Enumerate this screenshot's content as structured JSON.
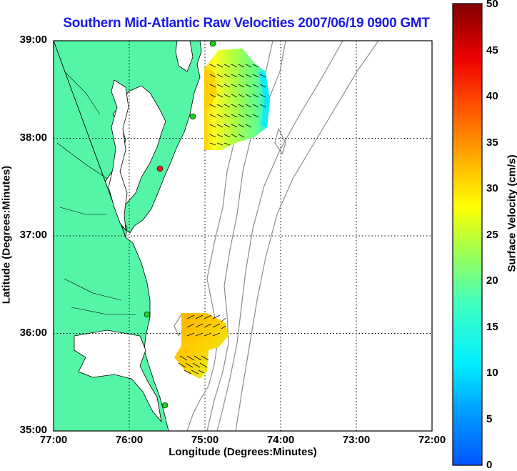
{
  "title": "Southern Mid-Atlantic Raw Velocities 2007/06/19 0900 GMT",
  "x_axis": {
    "label": "Longitude (Degrees:Minutes)",
    "ticks": [
      "77:00",
      "76:00",
      "75:00",
      "74:00",
      "73:00",
      "72:00"
    ]
  },
  "y_axis": {
    "label": "Latitude (Degrees:Minutes)",
    "ticks": [
      "39:00",
      "38:00",
      "37:00",
      "36:00",
      "35:00"
    ]
  },
  "colorbar": {
    "label": "Surface Velocity (cm/s)",
    "ticks": [
      "0",
      "5",
      "10",
      "15",
      "20",
      "25",
      "30",
      "35",
      "40",
      "45",
      "50"
    ],
    "min": 0,
    "max": 50
  },
  "colors": {
    "land": "#55f5a8",
    "title": "#1a1ae6",
    "bathymetry": "#8c8c8c",
    "station_active": "#22cc22",
    "station_inactive": "#e62222"
  },
  "stations": [
    {
      "status": "active"
    },
    {
      "status": "active"
    },
    {
      "status": "inactive"
    },
    {
      "status": "active"
    },
    {
      "status": "active"
    }
  ]
}
